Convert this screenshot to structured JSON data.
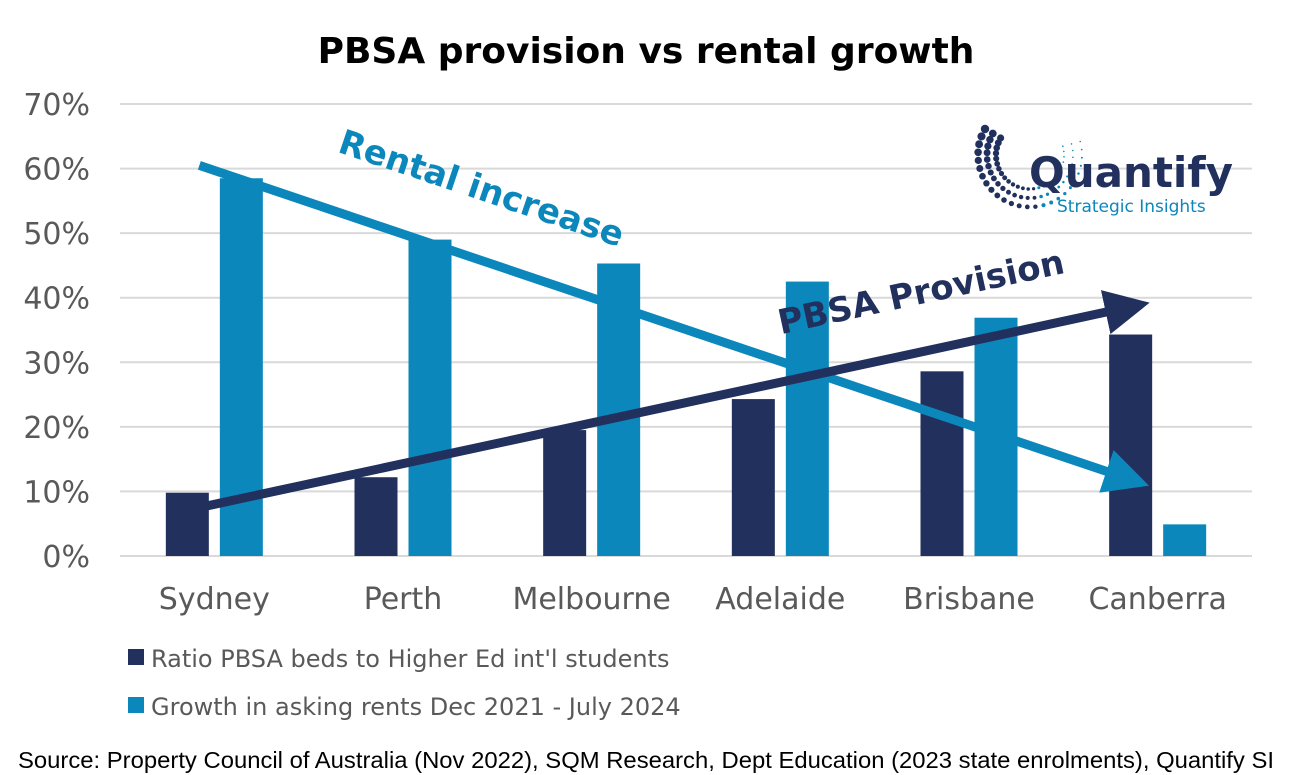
{
  "colors": {
    "series1": "#22305e",
    "series2": "#0b87bb",
    "grid": "#d9d9d9",
    "axis_text": "#595959",
    "rental_arrow": "#0b87bb",
    "pbsa_arrow": "#22305e"
  },
  "chart_data": {
    "type": "bar",
    "title": "PBSA provision vs rental growth",
    "categories": [
      "Sydney",
      "Perth",
      "Melbourne",
      "Adelaide",
      "Brisbane",
      "Canberra"
    ],
    "series": [
      {
        "name": "Ratio PBSA beds to Higher Ed int'l students",
        "values": [
          9.8,
          12.2,
          19.5,
          24.3,
          28.6,
          34.3
        ]
      },
      {
        "name": "Growth in asking rents Dec 2021 - July 2024",
        "values": [
          58.5,
          49.0,
          45.3,
          42.5,
          36.9,
          4.9
        ]
      }
    ],
    "ylim": [
      0,
      70
    ],
    "yticks": [
      0,
      10,
      20,
      30,
      40,
      50,
      60,
      70
    ],
    "ytick_labels": [
      "0%",
      "10%",
      "20%",
      "30%",
      "40%",
      "50%",
      "60%",
      "70%"
    ],
    "xlabel": "",
    "ylabel": "",
    "grid": true,
    "legend_position": "bottom-left",
    "annotations": [
      {
        "text": "Rental increase",
        "type": "trend-arrow",
        "series": "Growth in asking rents Dec 2021 - July 2024",
        "from": {
          "category": "Sydney",
          "value": 60.5
        },
        "to": {
          "category": "Canberra",
          "value": 12.0
        }
      },
      {
        "text": "PBSA Provision",
        "type": "trend-arrow",
        "series": "Ratio PBSA beds to Higher Ed int'l students",
        "from": {
          "category": "Sydney",
          "value": 7.5
        },
        "to": {
          "category": "Canberra",
          "value": 38.5
        }
      }
    ]
  },
  "logo": {
    "name": "Quantify",
    "tagline": "Strategic Insights"
  },
  "source": "Source: Property Council of Australia (Nov 2022), SQM Research, Dept Education (2023 state enrolments), Quantify SI"
}
